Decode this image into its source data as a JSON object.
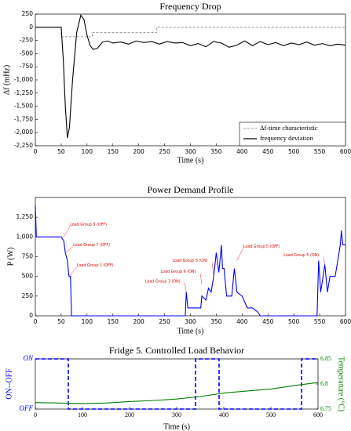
{
  "chart_data": [
    {
      "type": "line",
      "title": "Frequency Drop",
      "xlabel": "Time (s)",
      "ylabel": "Δf (mHz)",
      "xlim": [
        0,
        600
      ],
      "xticks": [
        0,
        50,
        100,
        150,
        200,
        250,
        300,
        350,
        400,
        450,
        500,
        550,
        600
      ],
      "ylim": [
        -2250,
        250
      ],
      "yticks": [
        250,
        0,
        -250,
        -500,
        -750,
        {
          "value": -1000,
          "label": "-1,000"
        },
        {
          "value": -1250,
          "label": "-1,250"
        },
        {
          "value": -1500,
          "label": "-1,500"
        },
        {
          "value": -1750,
          "label": "-1,750"
        },
        {
          "value": -2000,
          "label": "-2,000"
        },
        {
          "value": -2250,
          "label": "-2,250"
        }
      ],
      "grid": false,
      "legend": "lower right",
      "series": [
        {
          "name": "Δf-time characteristic",
          "color": "#808080",
          "linestyle": "dashed",
          "x": [
            0,
            50,
            50,
            110,
            110,
            235,
            235,
            600
          ],
          "values": [
            0,
            0,
            -180,
            -180,
            -100,
            -100,
            0,
            0
          ]
        },
        {
          "name": "frequency deviation",
          "color": "#000000",
          "linestyle": "solid",
          "x": [
            0,
            50,
            54,
            58,
            62,
            66,
            72,
            80,
            88,
            94,
            100,
            106,
            112,
            120,
            130,
            140,
            150,
            165,
            180,
            195,
            210,
            225,
            240,
            255,
            270,
            285,
            300,
            315,
            330,
            345,
            360,
            375,
            390,
            405,
            420,
            435,
            450,
            465,
            480,
            495,
            510,
            525,
            540,
            555,
            570,
            585,
            600
          ],
          "values": [
            0,
            0,
            -600,
            -1500,
            -2100,
            -1900,
            -1000,
            -100,
            230,
            150,
            -150,
            -350,
            -420,
            -400,
            -280,
            -260,
            -300,
            -280,
            -320,
            -260,
            -290,
            -270,
            -320,
            -270,
            -300,
            -290,
            -350,
            -310,
            -370,
            -270,
            -300,
            -380,
            -340,
            -260,
            -350,
            -270,
            -330,
            -290,
            -350,
            -300,
            -330,
            -280,
            -340,
            -310,
            -350,
            -320,
            -340
          ]
        }
      ]
    },
    {
      "type": "line",
      "title": "Power Demand Profile",
      "xlabel": "Time (s)",
      "ylabel": "P (W)",
      "xlim": [
        0,
        600
      ],
      "xticks": [
        0,
        50,
        100,
        150,
        200,
        250,
        300,
        350,
        400,
        450,
        500,
        550,
        600
      ],
      "ylim": [
        0,
        1500
      ],
      "yticks": [
        0,
        250,
        500,
        750,
        {
          "value": 1000,
          "label": "1,000"
        },
        {
          "value": 1250,
          "label": "1,250"
        }
      ],
      "grid": false,
      "series": [
        {
          "color": "#0000ff",
          "linestyle": "solid",
          "x": [
            0,
            2,
            50,
            55,
            58,
            62,
            65,
            68,
            70,
            290,
            292,
            295,
            320,
            322,
            330,
            335,
            340,
            345,
            350,
            355,
            360,
            362,
            365,
            370,
            380,
            385,
            390,
            400,
            410,
            420,
            430,
            435,
            545,
            548,
            552,
            560,
            565,
            570,
            580,
            585,
            590,
            592,
            595,
            600
          ],
          "values": [
            1400,
            1000,
            1000,
            950,
            800,
            700,
            500,
            500,
            0,
            0,
            300,
            100,
            100,
            250,
            200,
            350,
            300,
            500,
            800,
            550,
            900,
            600,
            600,
            250,
            250,
            600,
            300,
            250,
            100,
            100,
            50,
            0,
            0,
            700,
            300,
            650,
            300,
            500,
            500,
            700,
            900,
            1080,
            900,
            900
          ]
        }
      ],
      "annotations": [
        {
          "text": "Load Group 3 (OFF)",
          "x": 55,
          "y": 1000
        },
        {
          "text": "Load Group 7 (OFF)",
          "x": 58,
          "y": 800
        },
        {
          "text": "Load Group 1 (OFF)",
          "x": 65,
          "y": 500
        },
        {
          "text": "Load Group 3 (ON)",
          "x": 292,
          "y": 300
        },
        {
          "text": "Load Group 6 (ON)",
          "x": 322,
          "y": 400
        },
        {
          "text": "Load Group 5 (ON)",
          "x": 345,
          "y": 500
        },
        {
          "text": "Load Group 5 (OFF)",
          "x": 390,
          "y": 700
        },
        {
          "text": "Load Group 5 (ON)",
          "x": 560,
          "y": 650
        }
      ]
    },
    {
      "type": "line",
      "title": "Fridge 5. Controlled Load Behavior",
      "xlabel": "Time (s)",
      "ylabel": "ON--OFF",
      "y2label": "Temperature (°C)",
      "xlim": [
        0,
        600
      ],
      "xticks": [
        0,
        100,
        200,
        300,
        400,
        500,
        600
      ],
      "ylim": [
        0,
        1
      ],
      "yticks": [
        {
          "value": 0,
          "label": "OFF"
        },
        {
          "value": 1,
          "label": "ON"
        }
      ],
      "y2lim": [
        6.75,
        6.85
      ],
      "y2ticks": [
        6.75,
        6.8,
        6.85
      ],
      "grid": false,
      "series": [
        {
          "color": "#0000ff",
          "linestyle": "dashed",
          "x": [
            0,
            70,
            70,
            340,
            340,
            390,
            390,
            565,
            565,
            600
          ],
          "values": [
            1,
            1,
            0,
            0,
            1,
            1,
            0,
            0,
            1,
            1
          ]
        },
        {
          "color": "#007f00",
          "linestyle": "solid",
          "axis": "y2",
          "x": [
            0,
            50,
            100,
            150,
            200,
            250,
            300,
            350,
            400,
            450,
            500,
            550,
            600
          ],
          "values": [
            6.763,
            6.762,
            6.761,
            6.762,
            6.765,
            6.767,
            6.77,
            6.775,
            6.782,
            6.786,
            6.79,
            6.797,
            6.803
          ]
        }
      ]
    }
  ]
}
